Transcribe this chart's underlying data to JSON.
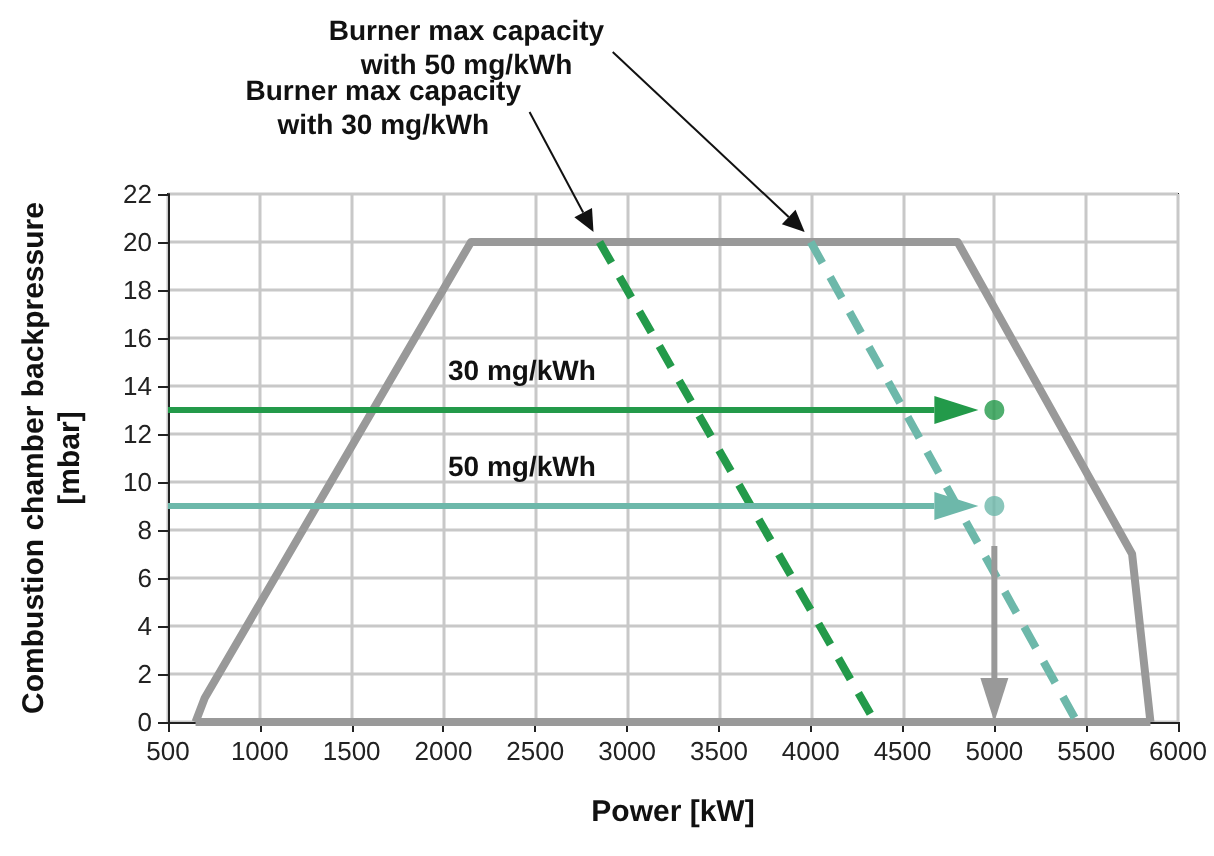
{
  "chart_data": {
    "type": "line",
    "xlabel": "Power [kW]",
    "ylabel": "Combustion chamber backpressure\n[mbar]",
    "xlim": [
      500,
      6000
    ],
    "xticks": [
      500,
      1000,
      1500,
      2000,
      2500,
      3000,
      3500,
      4000,
      4500,
      5000,
      5500,
      6000
    ],
    "ylim": [
      0,
      22
    ],
    "yticks": [
      0,
      2,
      4,
      6,
      8,
      10,
      12,
      14,
      16,
      18,
      20,
      22
    ],
    "grid": true,
    "marker": "none",
    "series": [
      {
        "color": "#999999",
        "line_style": "solid",
        "x": [
          650,
          700,
          2150,
          4800,
          5750,
          5850
        ],
        "values": [
          0,
          1,
          20,
          20,
          7,
          0
        ]
      },
      {
        "color": "#999999",
        "line_style": "solid",
        "x": [
          650,
          5850
        ],
        "values": [
          0,
          0
        ]
      },
      {
        "color": "#239a4a",
        "line_style": "dashed",
        "x": [
          2850,
          4350
        ],
        "values": [
          20,
          0
        ]
      },
      {
        "color": "#6db8aa",
        "line_style": "dashed",
        "x": [
          4000,
          5450
        ],
        "values": [
          20,
          0
        ]
      },
      {
        "type": "scatter",
        "marker": "circle",
        "colors": [
          "#239a4a",
          "#6db8aa"
        ],
        "x": [
          5000,
          5000
        ],
        "values": [
          13,
          9
        ]
      }
    ],
    "annotations": [
      "30 mg/kWh",
      "50 mg/kWh",
      "Burner max capacity\nwith 30 mg/kWh",
      "Burner max capacity\nwith 50 mg/kWh"
    ]
  }
}
